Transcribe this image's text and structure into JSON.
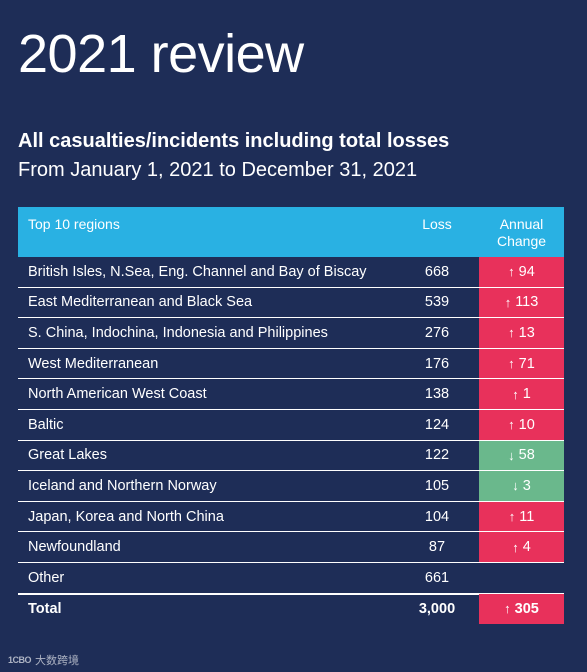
{
  "header": {
    "title": "2021 review",
    "subtitle": "All casualties/incidents including total losses",
    "date_range": "From January 1, 2021 to December 31, 2021"
  },
  "table": {
    "columns": [
      "Top 10 regions",
      "Loss",
      "Annual\nChange"
    ],
    "rows": [
      {
        "region": "British Isles, N.Sea, Eng. Channel and Bay of Biscay",
        "loss": "668",
        "change": "94",
        "direction": "up"
      },
      {
        "region": "East Mediterranean and Black Sea",
        "loss": "539",
        "change": "113",
        "direction": "up"
      },
      {
        "region": "S. China, Indochina, Indonesia and Philippines",
        "loss": "276",
        "change": "13",
        "direction": "up"
      },
      {
        "region": "West Mediterranean",
        "loss": "176",
        "change": "71",
        "direction": "up"
      },
      {
        "region": "North American West Coast",
        "loss": "138",
        "change": "1",
        "direction": "up"
      },
      {
        "region": "Baltic",
        "loss": "124",
        "change": "10",
        "direction": "up"
      },
      {
        "region": "Great Lakes",
        "loss": "122",
        "change": "58",
        "direction": "down"
      },
      {
        "region": "Iceland and Northern Norway",
        "loss": "105",
        "change": "3",
        "direction": "down"
      },
      {
        "region": "Japan, Korea and North China",
        "loss": "104",
        "change": "11",
        "direction": "up"
      },
      {
        "region": "Newfoundland",
        "loss": "87",
        "change": "4",
        "direction": "up"
      },
      {
        "region": "Other",
        "loss": "661",
        "change": "",
        "direction": ""
      }
    ],
    "total": {
      "label": "Total",
      "loss": "3,000",
      "change": "305",
      "direction": "up"
    }
  },
  "colors": {
    "background": "#1e2d57",
    "header": "#29b1e3",
    "increase": "#e8315b",
    "decrease": "#6ab88c"
  },
  "icons": {
    "up": "arrow-up-icon",
    "down": "arrow-down-icon"
  },
  "watermark": {
    "logo": "1CBO",
    "text": "大数跨境"
  }
}
